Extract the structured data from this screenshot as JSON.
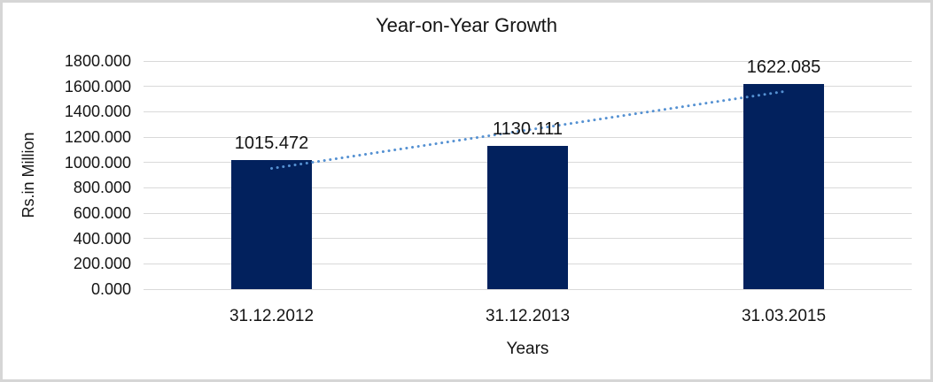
{
  "window": {
    "background": "#ffffff",
    "border_color": "#d6d6d6"
  },
  "chart_data": {
    "type": "bar",
    "title": "Year-on-Year Growth",
    "xlabel": "Years",
    "ylabel": "Rs.in Million",
    "categories": [
      "31.12.2012",
      "31.12.2013",
      "31.03.2015"
    ],
    "values": [
      1015.472,
      1130.111,
      1622.085
    ],
    "data_labels": [
      "1015.472",
      "1130.111",
      "1622.085"
    ],
    "ylim": [
      0,
      1800
    ],
    "ytick_step": 200,
    "ytick_labels": [
      "0.000",
      "200.000",
      "400.000",
      "600.000",
      "800.000",
      "1000.000",
      "1200.000",
      "1400.000",
      "1600.000",
      "1800.000"
    ],
    "grid": "horizontal",
    "legend": "none",
    "bar_color": "#02215d",
    "gridline_color": "#d9d9d9",
    "text_color": "#141414",
    "trendline": {
      "type": "linear",
      "style": "dotted",
      "color": "#5591d2"
    }
  }
}
